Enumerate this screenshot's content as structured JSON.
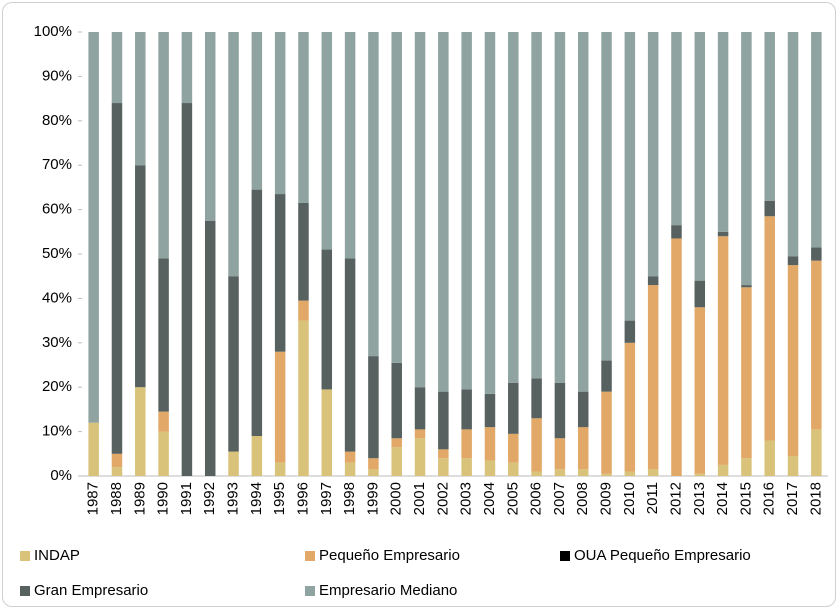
{
  "chart_data": {
    "type": "stacked-bar",
    "categories": [
      "1987",
      "1988",
      "1989",
      "1990",
      "1991",
      "1992",
      "1993",
      "1994",
      "1995",
      "1996",
      "1997",
      "1998",
      "1999",
      "2000",
      "2001",
      "2002",
      "2003",
      "2004",
      "2005",
      "2006",
      "2007",
      "2008",
      "2009",
      "2010",
      "2011",
      "2012",
      "2013",
      "2014",
      "2015",
      "2016",
      "2017",
      "2018"
    ],
    "series": [
      {
        "name": "INDAP",
        "color": "#d9c27a",
        "values": [
          12,
          2,
          20,
          10,
          0,
          0,
          5.5,
          9,
          3,
          35,
          19.5,
          3,
          1.5,
          6.5,
          8.5,
          4,
          4,
          3.5,
          3,
          1,
          1.5,
          1.5,
          0.5,
          1,
          1.5,
          0,
          0.5,
          2.5,
          4,
          8,
          4.5,
          10.5
        ]
      },
      {
        "name": "Pequeño Empresario",
        "color": "#e1a867",
        "values": [
          0,
          3,
          0,
          4.5,
          0,
          0,
          0,
          0,
          25,
          4.5,
          0,
          2.5,
          2.5,
          2,
          2,
          2,
          6.5,
          7.5,
          6.5,
          12,
          7,
          9.5,
          18.5,
          29,
          41.5,
          53.5,
          37.5,
          51.5,
          38.5,
          50.5,
          43,
          38
        ]
      },
      {
        "name": "OUA Pequeño Empresario",
        "color": "#000000",
        "values": [
          0,
          0,
          0,
          0,
          0,
          0,
          0,
          0,
          0,
          0,
          0,
          0,
          0,
          0,
          0,
          0,
          0,
          0,
          0,
          0,
          0,
          0,
          0,
          0,
          0,
          0,
          0,
          0,
          0,
          0,
          0,
          0
        ]
      },
      {
        "name": "Gran Empresario",
        "color": "#57615f",
        "values": [
          0,
          79,
          50,
          34.5,
          84,
          57.5,
          39.5,
          55.5,
          35.5,
          22,
          31.5,
          43.5,
          23,
          17,
          9.5,
          13,
          9,
          7.5,
          11.5,
          9,
          12.5,
          8,
          7,
          5,
          2,
          3,
          6,
          1,
          0.5,
          3.5,
          2,
          3
        ]
      },
      {
        "name": "Empresario Mediano",
        "color": "#8fa3a0",
        "values": [
          88,
          16,
          30,
          51,
          16,
          42.5,
          55,
          35.5,
          36.5,
          38.5,
          49,
          51,
          73,
          74.5,
          80,
          81,
          80.5,
          81.5,
          79,
          78,
          79,
          81,
          74,
          65,
          55,
          43.5,
          56,
          45,
          57,
          38,
          50.5,
          48.5
        ]
      }
    ],
    "ylim": [
      0,
      100
    ],
    "yticks": [
      {
        "value": 0,
        "label": "0%"
      },
      {
        "value": 10,
        "label": "10%"
      },
      {
        "value": 20,
        "label": "20%"
      },
      {
        "value": 30,
        "label": "30%"
      },
      {
        "value": 40,
        "label": "40%"
      },
      {
        "value": 50,
        "label": "50%"
      },
      {
        "value": 60,
        "label": "60%"
      },
      {
        "value": 70,
        "label": "70%"
      },
      {
        "value": 80,
        "label": "80%"
      },
      {
        "value": 90,
        "label": "90%"
      },
      {
        "value": 100,
        "label": "100%"
      }
    ],
    "legend": "bottom"
  }
}
